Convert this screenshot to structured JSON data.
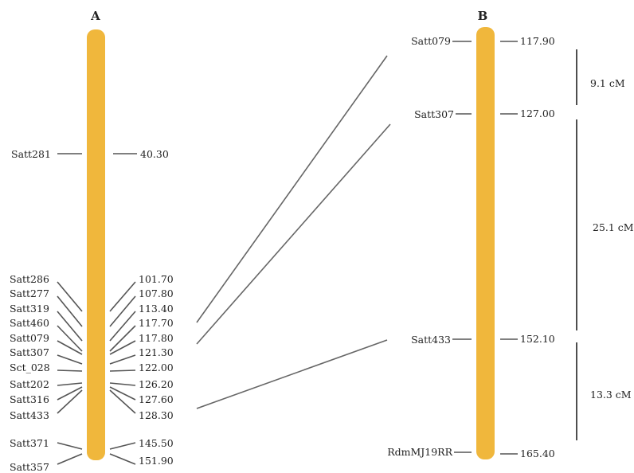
{
  "chromosome_a": {
    "title": "A",
    "color": "#f0b73c",
    "markers": [
      {
        "name": "Satt281",
        "position": "40.30"
      },
      {
        "name": "Satt286",
        "position": "101.70"
      },
      {
        "name": "Satt277",
        "position": "107.80"
      },
      {
        "name": "Satt319",
        "position": "113.40"
      },
      {
        "name": "Satt460",
        "position": "117.70"
      },
      {
        "name": "Satt079",
        "position": "117.80"
      },
      {
        "name": "Satt307",
        "position": "121.30"
      },
      {
        "name": "Sct_028",
        "position": "122.00"
      },
      {
        "name": "Satt202",
        "position": "126.20"
      },
      {
        "name": "Satt316",
        "position": "127.60"
      },
      {
        "name": "Satt433",
        "position": "128.30"
      },
      {
        "name": "Satt371",
        "position": "145.50"
      },
      {
        "name": "Satt357",
        "position": "151.90"
      }
    ]
  },
  "chromosome_b": {
    "title": "B",
    "color": "#f0b73c",
    "markers": [
      {
        "name": "Satt079",
        "position": "117.90"
      },
      {
        "name": "Satt307",
        "position": "127.00"
      },
      {
        "name": "Satt433",
        "position": "152.10"
      },
      {
        "name": "RdmMJ19RR",
        "position": "165.40"
      }
    ],
    "intervals": [
      {
        "label": "9.1 cM"
      },
      {
        "label": "25.1 cM"
      },
      {
        "label": "13.3 cM"
      }
    ]
  },
  "links": [
    {
      "from": "Satt079",
      "to": "Satt079"
    },
    {
      "from": "Satt307",
      "to": "Satt307"
    },
    {
      "from": "Satt433",
      "to": "Satt433"
    }
  ]
}
